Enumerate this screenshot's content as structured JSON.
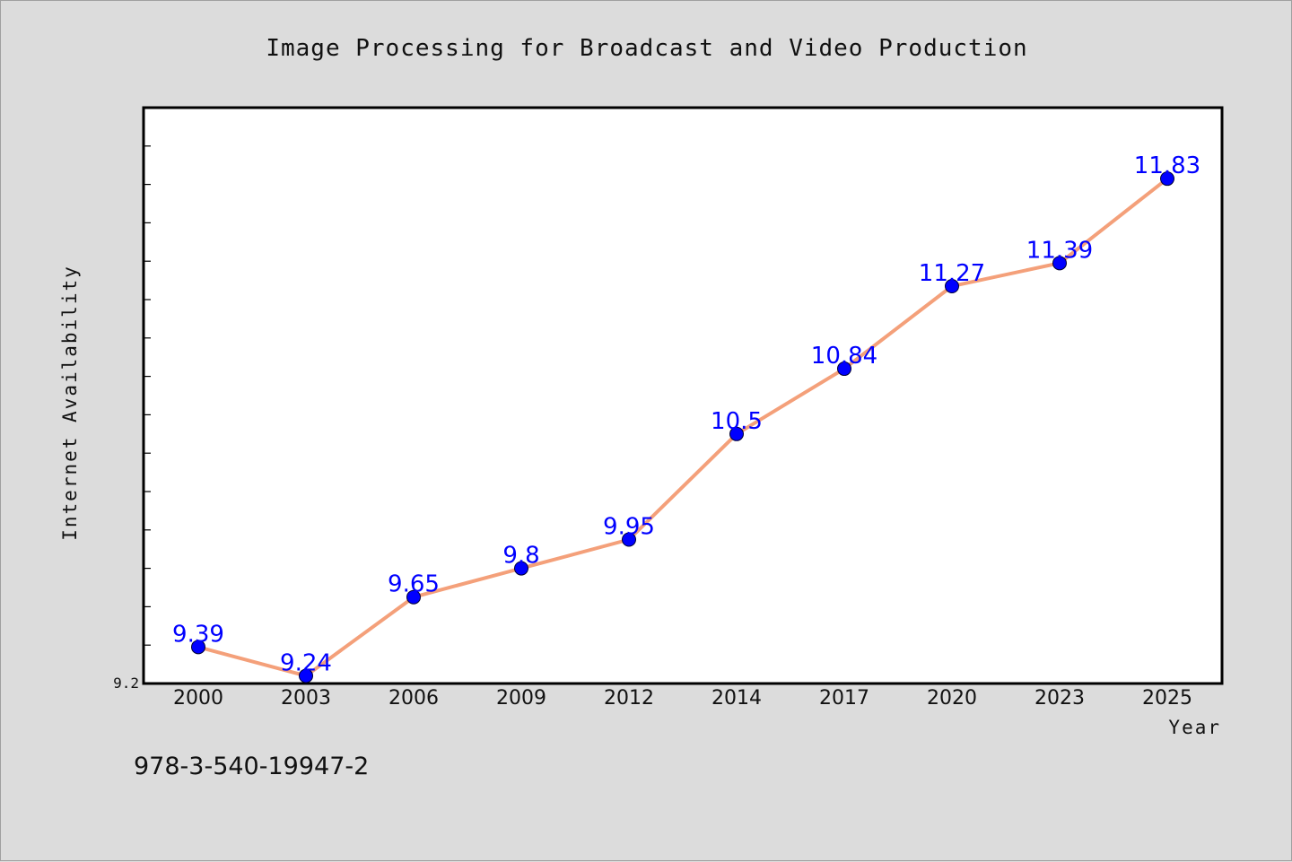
{
  "chart_data": {
    "type": "line",
    "title": "Image Processing for Broadcast and Video Production",
    "xlabel": "Year",
    "ylabel": "Internet Availability",
    "categories": [
      "2000",
      "2003",
      "2006",
      "2009",
      "2012",
      "2014",
      "2017",
      "2020",
      "2023",
      "2025"
    ],
    "series": [
      {
        "values": [
          9.39,
          9.24,
          9.65,
          9.8,
          9.95,
          10.5,
          10.84,
          11.27,
          11.39,
          11.83
        ],
        "labels": [
          "9.39",
          "9.24",
          "9.65",
          "9.8",
          "9.95",
          "10.5",
          "10.84",
          "11.27",
          "11.39",
          "11.83"
        ]
      }
    ],
    "yticks": [
      "9.2"
    ],
    "ylim": [
      9.2,
      12.2
    ],
    "grid": false,
    "line_color": "#f4a07a",
    "marker_color": "#0000ff",
    "label_color": "#0000ff"
  },
  "footer": {
    "isbn": "978-3-540-19947-2"
  }
}
